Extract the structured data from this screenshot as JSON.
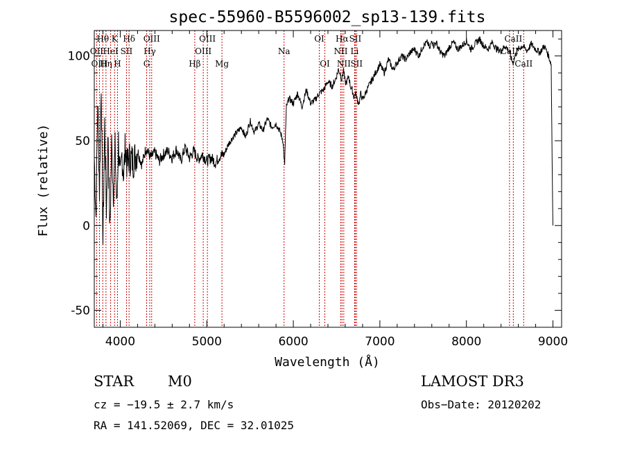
{
  "chart_data": {
    "type": "line",
    "title": "spec-55960-B5596002_sp13-139.fits",
    "xlabel": "Wavelength (Å)",
    "ylabel": "Flux (relative)",
    "xlim": [
      3700,
      9100
    ],
    "ylim": [
      -60,
      115
    ],
    "xticks": [
      4000,
      5000,
      6000,
      7000,
      8000,
      9000
    ],
    "yticks": [
      -50,
      0,
      50,
      100
    ],
    "series": [
      {
        "x": [
          3700,
          3720,
          3740,
          3760,
          3780,
          3800,
          3820,
          3840,
          3860,
          3880,
          3900,
          3920,
          3940,
          3960,
          3980,
          4000,
          4020,
          4040,
          4060,
          4080,
          4100,
          4150,
          4200,
          4250,
          4300,
          4350,
          4400,
          4450,
          4500,
          4550,
          4600,
          4650,
          4700,
          4750,
          4800,
          4850,
          4900,
          4950,
          5000,
          5050,
          5100,
          5150,
          5200,
          5250,
          5300,
          5350,
          5400,
          5450,
          5500,
          5550,
          5600,
          5650,
          5700,
          5750,
          5800,
          5850,
          5880,
          5900,
          5910,
          5920,
          5950,
          6000,
          6050,
          6100,
          6150,
          6200,
          6250,
          6300,
          6350,
          6400,
          6450,
          6500,
          6520,
          6540,
          6560,
          6580,
          6600,
          6620,
          6640,
          6660,
          6680,
          6700,
          6720,
          6740,
          6760,
          6780,
          6800,
          6850,
          6900,
          6950,
          7000,
          7050,
          7100,
          7150,
          7200,
          7250,
          7300,
          7350,
          7400,
          7450,
          7500,
          7550,
          7580,
          7600,
          7620,
          7650,
          7700,
          7750,
          7800,
          7850,
          7900,
          7950,
          8000,
          8050,
          8100,
          8150,
          8200,
          8250,
          8300,
          8350,
          8400,
          8450,
          8500,
          8520,
          8540,
          8560,
          8600,
          8650,
          8700,
          8750,
          8800,
          8850,
          8900,
          8950,
          8980,
          8990,
          9000
        ],
        "y": [
          40,
          5,
          75,
          20,
          85,
          -10,
          60,
          10,
          55,
          -5,
          48,
          20,
          45,
          10,
          50,
          25,
          42,
          30,
          48,
          35,
          40,
          38,
          44,
          36,
          46,
          40,
          43,
          38,
          42,
          44,
          40,
          45,
          38,
          46,
          40,
          44,
          39,
          42,
          38,
          40,
          37,
          41,
          42,
          48,
          52,
          55,
          58,
          52,
          62,
          55,
          60,
          56,
          63,
          58,
          60,
          55,
          50,
          35,
          55,
          70,
          75,
          72,
          78,
          70,
          80,
          72,
          74,
          78,
          80,
          85,
          82,
          88,
          92,
          90,
          86,
          92,
          84,
          85,
          88,
          82,
          80,
          76,
          78,
          74,
          72,
          78,
          74,
          80,
          85,
          90,
          95,
          90,
          98,
          92,
          96,
          100,
          98,
          102,
          104,
          100,
          106,
          108,
          104,
          110,
          106,
          108,
          102,
          100,
          105,
          108,
          104,
          106,
          109,
          104,
          107,
          110,
          106,
          104,
          108,
          104,
          103,
          106,
          102,
          98,
          96,
          100,
          104,
          106,
          103,
          107,
          104,
          102,
          106,
          100,
          95,
          40,
          0
        ]
      }
    ],
    "spectral_lines": [
      {
        "name": "Hθ",
        "x": 3798,
        "row": 0
      },
      {
        "name": "OII",
        "x": 3727,
        "row": 1
      },
      {
        "name": "OIII",
        "x": 3760,
        "row": 2
      },
      {
        "name": "Hη",
        "x": 3835,
        "row": 2
      },
      {
        "name": "K",
        "x": 3934,
        "row": 0
      },
      {
        "name": "HeI",
        "x": 3889,
        "row": 1
      },
      {
        "name": "H",
        "x": 3968,
        "row": 2
      },
      {
        "name": "Hδ",
        "x": 4102,
        "row": 0
      },
      {
        "name": "SII",
        "x": 4072,
        "row": 1
      },
      {
        "name": "OIII",
        "x": 4363,
        "row": 0
      },
      {
        "name": "Hγ",
        "x": 4341,
        "row": 1
      },
      {
        "name": "G",
        "x": 4305,
        "row": 2
      },
      {
        "name": "Hβ",
        "x": 4861,
        "row": 2
      },
      {
        "name": "OIII",
        "x": 5007,
        "row": 0
      },
      {
        "name": "OIII",
        "x": 4959,
        "row": 1
      },
      {
        "name": "Mg",
        "x": 5175,
        "row": 2
      },
      {
        "name": "Na",
        "x": 5893,
        "row": 1
      },
      {
        "name": "OI",
        "x": 6300,
        "row": 0
      },
      {
        "name": "OI",
        "x": 6364,
        "row": 2
      },
      {
        "name": "Hα",
        "x": 6563,
        "row": 0
      },
      {
        "name": "SII",
        "x": 6716,
        "row": 0
      },
      {
        "name": "NII",
        "x": 6548,
        "row": 1
      },
      {
        "name": "Li",
        "x": 6708,
        "row": 1
      },
      {
        "name": "NII",
        "x": 6583,
        "row": 2
      },
      {
        "name": "SII",
        "x": 6731,
        "row": 2
      },
      {
        "name": "CaII",
        "x": 8542,
        "row": 0
      },
      {
        "name": "CaII",
        "x": 8498,
        "row": 1
      },
      {
        "name": "CaII",
        "x": 8662,
        "row": 2
      }
    ]
  },
  "info": {
    "class": "STAR",
    "subclass": "M0",
    "survey": "LAMOST DR3",
    "cz": "cz = −19.5 ± 2.7 km/s",
    "obs_date": "Obs−Date: 20120202",
    "coords": "RA = 141.52069, DEC =  32.01025"
  },
  "colors": {
    "line_marker": "#cc0000",
    "spectrum": "#000000"
  }
}
